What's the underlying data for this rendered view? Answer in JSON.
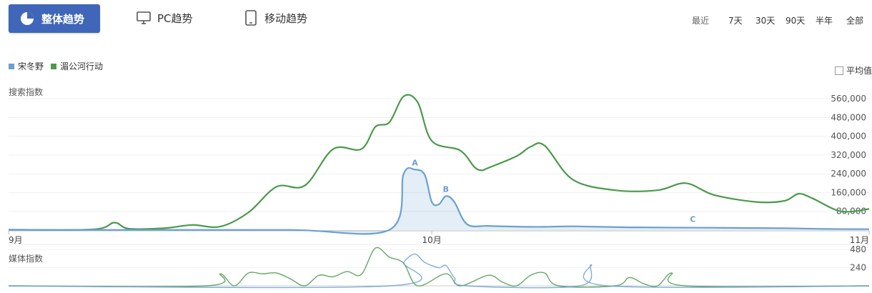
{
  "tabs": {
    "overall": "整体趋势",
    "pc": "PC趋势",
    "mobile": "移动趋势"
  },
  "ranges": [
    "最近",
    "7天",
    "30天",
    "90天",
    "半年",
    "全部"
  ],
  "average_label": "平均值",
  "colors": {
    "series1": "#6aa0d0",
    "series2": "#4a9a4a",
    "tab_active": "#3f66b8"
  },
  "chart_data": [
    {
      "type": "area",
      "ylabel": "搜索指数",
      "ylim": [
        0,
        600000
      ],
      "yticks": [
        "80,000",
        "160,000",
        "240,000",
        "320,000",
        "400,000",
        "480,000",
        "560,000"
      ],
      "ytick_values": [
        80000,
        160000,
        240000,
        320000,
        400000,
        480000,
        560000
      ],
      "xticks": [
        {
          "label": "9月",
          "day": 0
        },
        {
          "label": "10月",
          "day": 30
        },
        {
          "label": "11月",
          "day": 61
        }
      ],
      "legend": [
        "宋冬野",
        "湄公河行动"
      ],
      "series": [
        {
          "name": "宋冬野",
          "points": [
            [
              0,
              1000
            ],
            [
              10,
              1000
            ],
            [
              20,
              1000
            ],
            [
              27.0,
              1500
            ],
            [
              28.0,
              240000
            ],
            [
              28.8,
              258000
            ],
            [
              29.5,
              235000
            ],
            [
              30.0,
              120000
            ],
            [
              30.5,
              110000
            ],
            [
              31.0,
              145000
            ],
            [
              31.6,
              120000
            ],
            [
              32.5,
              25000
            ],
            [
              34,
              18000
            ],
            [
              36,
              15000
            ],
            [
              38,
              14000
            ],
            [
              40,
              16000
            ],
            [
              44,
              12000
            ],
            [
              50,
              10000
            ],
            [
              52,
              9000
            ],
            [
              55,
              8000
            ],
            [
              58,
              5000
            ],
            [
              61,
              4000
            ]
          ]
        },
        {
          "name": "湄公河行动",
          "points": [
            [
              0,
              2000
            ],
            [
              6,
              3000
            ],
            [
              7.5,
              32000
            ],
            [
              8.5,
              6000
            ],
            [
              11,
              8000
            ],
            [
              13,
              22000
            ],
            [
              15,
              15000
            ],
            [
              17,
              75000
            ],
            [
              19,
              185000
            ],
            [
              21,
              190000
            ],
            [
              23,
              345000
            ],
            [
              25,
              345000
            ],
            [
              26,
              440000
            ],
            [
              27,
              460000
            ],
            [
              28,
              570000
            ],
            [
              29,
              545000
            ],
            [
              30,
              380000
            ],
            [
              32,
              340000
            ],
            [
              33,
              270000
            ],
            [
              33.5,
              255000
            ],
            [
              34,
              265000
            ],
            [
              36,
              315000
            ],
            [
              37,
              355000
            ],
            [
              38,
              360000
            ],
            [
              40,
              215000
            ],
            [
              43,
              170000
            ],
            [
              46,
              170000
            ],
            [
              48,
              200000
            ],
            [
              50,
              150000
            ],
            [
              53,
              120000
            ],
            [
              55,
              125000
            ],
            [
              56,
              155000
            ],
            [
              57,
              135000
            ],
            [
              59,
              80000
            ],
            [
              61,
              90000
            ]
          ]
        }
      ],
      "annotations": [
        {
          "label": "A",
          "day": 28.8,
          "value": 258000
        },
        {
          "label": "B",
          "day": 31.0,
          "value": 145000
        },
        {
          "label": "C",
          "day": 48.5,
          "value": 16000
        }
      ]
    },
    {
      "type": "line",
      "ylabel": "媒体指数",
      "ylim": [
        0,
        520
      ],
      "yticks": [
        "240",
        "480"
      ],
      "ytick_values": [
        240,
        480
      ],
      "series": [
        {
          "name": "宋冬野",
          "points": [
            [
              0,
              0
            ],
            [
              27.0,
              0
            ],
            [
              28.0,
              310
            ],
            [
              28.8,
              420
            ],
            [
              29.5,
              310
            ],
            [
              30.5,
              240
            ],
            [
              31.0,
              270
            ],
            [
              31.6,
              110
            ],
            [
              32.5,
              0
            ],
            [
              40.5,
              0
            ],
            [
              41.3,
              280
            ],
            [
              42.5,
              0
            ],
            [
              61,
              0
            ]
          ]
        },
        {
          "name": "湄公河行动",
          "points": [
            [
              0,
              0
            ],
            [
              14,
              0
            ],
            [
              15,
              160
            ],
            [
              16,
              0
            ],
            [
              17,
              170
            ],
            [
              18,
              160
            ],
            [
              19,
              170
            ],
            [
              20,
              90
            ],
            [
              21,
              0
            ],
            [
              22,
              140
            ],
            [
              23,
              120
            ],
            [
              24,
              190
            ],
            [
              25,
              150
            ],
            [
              26,
              500
            ],
            [
              27,
              380
            ],
            [
              28,
              300
            ],
            [
              29,
              0
            ],
            [
              31,
              160
            ],
            [
              32,
              0
            ],
            [
              34,
              140
            ],
            [
              35,
              50
            ],
            [
              36,
              0
            ],
            [
              37,
              140
            ],
            [
              38,
              170
            ],
            [
              39,
              0
            ],
            [
              43,
              0
            ],
            [
              44,
              110
            ],
            [
              45,
              30
            ],
            [
              46,
              0
            ],
            [
              47,
              170
            ],
            [
              48,
              0
            ],
            [
              61,
              0
            ]
          ]
        }
      ]
    }
  ]
}
